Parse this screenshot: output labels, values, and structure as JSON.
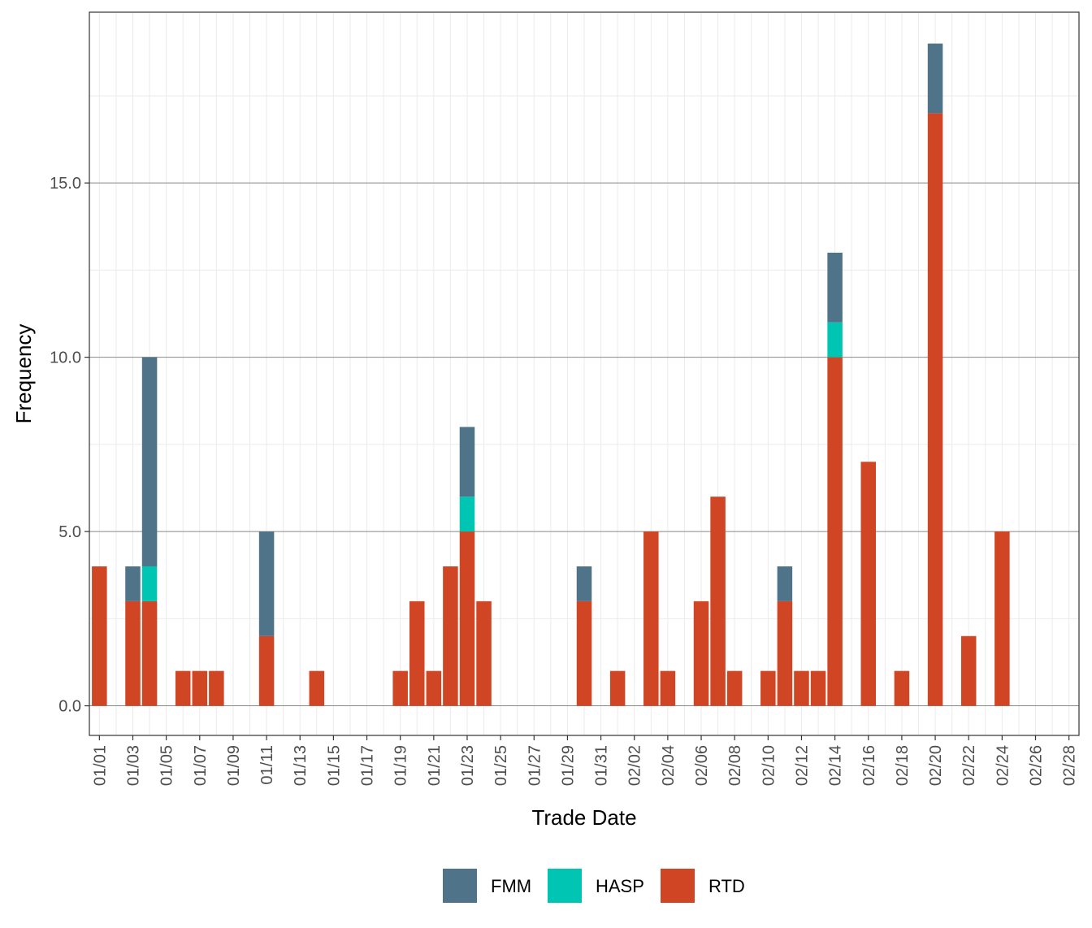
{
  "chart_data": {
    "type": "bar",
    "stacked": true,
    "xlabel": "Trade Date",
    "ylabel": "Frequency",
    "ylim": [
      -0.85,
      19.9
    ],
    "y_ticks": [
      "0.0",
      "5.0",
      "10.0",
      "15.0"
    ],
    "y_tick_values": [
      0,
      5,
      10,
      15
    ],
    "grid": true,
    "legend_position": "bottom",
    "dates": [
      "01/01",
      "01/02",
      "01/03",
      "01/04",
      "01/05",
      "01/06",
      "01/07",
      "01/08",
      "01/09",
      "01/10",
      "01/11",
      "01/12",
      "01/13",
      "01/14",
      "01/15",
      "01/16",
      "01/17",
      "01/18",
      "01/19",
      "01/20",
      "01/21",
      "01/22",
      "01/23",
      "01/24",
      "01/25",
      "01/26",
      "01/27",
      "01/28",
      "01/29",
      "01/30",
      "01/31",
      "02/01",
      "02/02",
      "02/03",
      "02/04",
      "02/05",
      "02/06",
      "02/07",
      "02/08",
      "02/09",
      "02/10",
      "02/11",
      "02/12",
      "02/13",
      "02/14",
      "02/15",
      "02/16",
      "02/17",
      "02/18",
      "02/19",
      "02/20",
      "02/21",
      "02/22",
      "02/23",
      "02/24",
      "02/25",
      "02/26",
      "02/27",
      "02/28"
    ],
    "x_ticks": [
      "01/01",
      "01/03",
      "01/05",
      "01/07",
      "01/09",
      "01/11",
      "01/13",
      "01/15",
      "01/17",
      "01/19",
      "01/21",
      "01/23",
      "01/25",
      "01/27",
      "01/29",
      "01/31",
      "02/02",
      "02/04",
      "02/06",
      "02/08",
      "02/10",
      "02/12",
      "02/14",
      "02/16",
      "02/18",
      "02/20",
      "02/22",
      "02/24",
      "02/26",
      "02/28"
    ],
    "series": [
      {
        "name": "RTD",
        "color": "#D04624",
        "values": [
          4,
          0,
          3,
          3,
          0,
          1,
          1,
          1,
          0,
          0,
          2,
          0,
          0,
          1,
          0,
          0,
          0,
          0,
          1,
          3,
          1,
          4,
          5,
          3,
          0,
          0,
          0,
          0,
          0,
          3,
          0,
          1,
          0,
          5,
          1,
          0,
          3,
          6,
          1,
          0,
          1,
          3,
          1,
          1,
          10,
          0,
          7,
          0,
          1,
          0,
          17,
          0,
          2,
          0,
          5,
          0,
          0,
          0,
          0
        ]
      },
      {
        "name": "HASP",
        "color": "#00C5B2",
        "values": [
          0,
          0,
          0,
          1,
          0,
          0,
          0,
          0,
          0,
          0,
          0,
          0,
          0,
          0,
          0,
          0,
          0,
          0,
          0,
          0,
          0,
          0,
          1,
          0,
          0,
          0,
          0,
          0,
          0,
          0,
          0,
          0,
          0,
          0,
          0,
          0,
          0,
          0,
          0,
          0,
          0,
          0,
          0,
          0,
          1,
          0,
          0,
          0,
          0,
          0,
          0,
          0,
          0,
          0,
          0,
          0,
          0,
          0,
          0
        ]
      },
      {
        "name": "FMM",
        "color": "#4F7389",
        "values": [
          0,
          0,
          1,
          6,
          0,
          0,
          0,
          0,
          0,
          0,
          3,
          0,
          0,
          0,
          0,
          0,
          0,
          0,
          0,
          0,
          0,
          0,
          2,
          0,
          0,
          0,
          0,
          0,
          0,
          1,
          0,
          0,
          0,
          0,
          0,
          0,
          0,
          0,
          0,
          0,
          0,
          1,
          0,
          0,
          2,
          0,
          0,
          0,
          0,
          0,
          2,
          0,
          0,
          0,
          0,
          0,
          0,
          0,
          0
        ]
      }
    ],
    "legend_order": [
      "FMM",
      "HASP",
      "RTD"
    ]
  }
}
